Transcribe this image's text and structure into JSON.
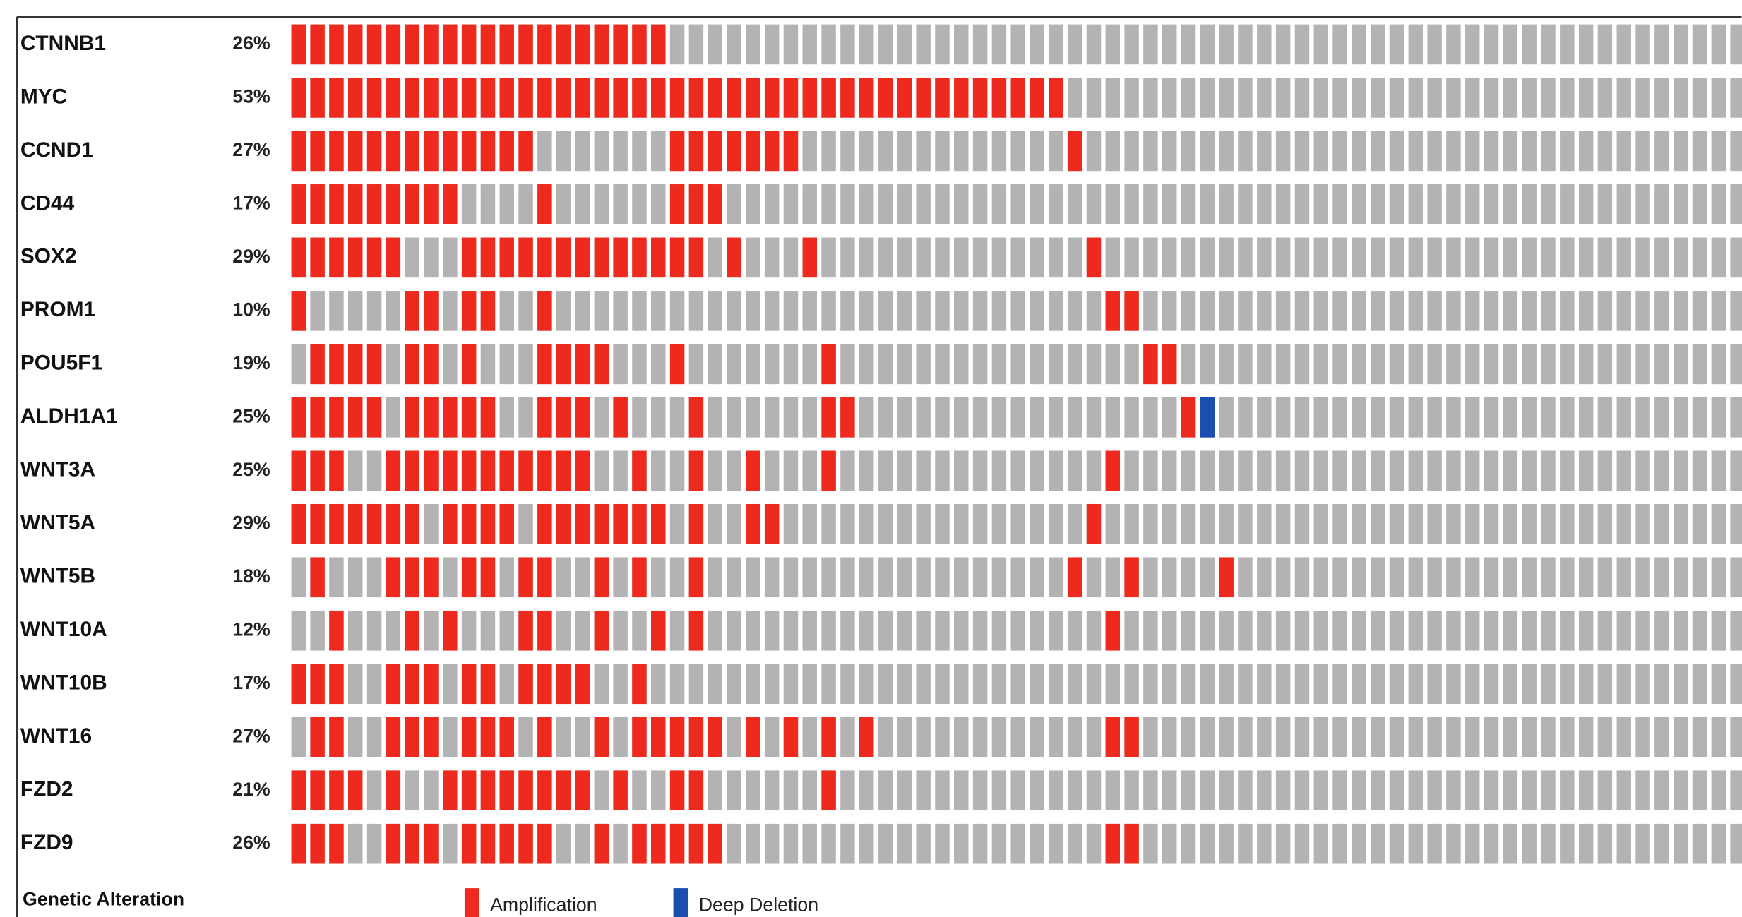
{
  "chart_data": {
    "type": "oncoprint",
    "legend_title": "Genetic Alteration",
    "legend": [
      {
        "name": "Amplification",
        "color": "#ee2a1f"
      },
      {
        "name": "Deep Deletion",
        "color": "#1b4eae"
      }
    ],
    "rows": [
      {
        "gene": "CTNNB1",
        "percent": "26%",
        "amplification": [
          0,
          1,
          2,
          3,
          4,
          5,
          6,
          7,
          8,
          9,
          10,
          11,
          12,
          13,
          14,
          15,
          16,
          17,
          18,
          19
        ],
        "deep_deletion": []
      },
      {
        "gene": "MYC",
        "percent": "53%",
        "amplification": [
          0,
          1,
          2,
          3,
          4,
          5,
          6,
          7,
          8,
          9,
          10,
          11,
          12,
          13,
          14,
          15,
          16,
          17,
          18,
          19,
          20,
          21,
          22,
          23,
          24,
          25,
          26,
          27,
          28,
          29,
          30,
          31,
          32,
          33,
          34,
          35,
          36,
          37,
          38,
          39,
          40
        ],
        "deep_deletion": []
      },
      {
        "gene": "CCND1",
        "percent": "27%",
        "amplification": [
          0,
          1,
          2,
          3,
          4,
          5,
          6,
          7,
          8,
          9,
          10,
          11,
          12,
          20,
          21,
          22,
          23,
          24,
          25,
          26,
          41
        ],
        "deep_deletion": []
      },
      {
        "gene": "CD44",
        "percent": "17%",
        "amplification": [
          0,
          1,
          2,
          3,
          4,
          5,
          6,
          7,
          8,
          13,
          20,
          21,
          22
        ],
        "deep_deletion": []
      },
      {
        "gene": "SOX2",
        "percent": "29%",
        "amplification": [
          0,
          1,
          2,
          3,
          4,
          5,
          9,
          10,
          11,
          12,
          13,
          14,
          15,
          16,
          17,
          18,
          19,
          20,
          21,
          23,
          27,
          42
        ],
        "deep_deletion": []
      },
      {
        "gene": "PROM1",
        "percent": "10%",
        "amplification": [
          0,
          6,
          7,
          9,
          10,
          13,
          43,
          44
        ],
        "deep_deletion": []
      },
      {
        "gene": "POU5F1",
        "percent": "19%",
        "amplification": [
          1,
          2,
          3,
          4,
          6,
          7,
          9,
          13,
          14,
          15,
          16,
          20,
          28,
          45,
          46
        ],
        "deep_deletion": []
      },
      {
        "gene": "ALDH1A1",
        "percent": "25%",
        "amplification": [
          0,
          1,
          2,
          3,
          4,
          6,
          7,
          8,
          9,
          10,
          13,
          14,
          15,
          17,
          21,
          28,
          29,
          47
        ],
        "deep_deletion": [
          48
        ]
      },
      {
        "gene": "WNT3A",
        "percent": "25%",
        "amplification": [
          0,
          1,
          2,
          5,
          6,
          7,
          8,
          9,
          10,
          11,
          12,
          13,
          14,
          15,
          18,
          21,
          24,
          28,
          43
        ],
        "deep_deletion": []
      },
      {
        "gene": "WNT5A",
        "percent": "29%",
        "amplification": [
          0,
          1,
          2,
          3,
          4,
          5,
          6,
          8,
          9,
          10,
          11,
          13,
          14,
          15,
          16,
          17,
          18,
          19,
          21,
          24,
          25,
          42
        ],
        "deep_deletion": []
      },
      {
        "gene": "WNT5B",
        "percent": "18%",
        "amplification": [
          1,
          5,
          6,
          7,
          9,
          10,
          12,
          13,
          16,
          18,
          21,
          41,
          44,
          49
        ],
        "deep_deletion": []
      },
      {
        "gene": "WNT10A",
        "percent": "12%",
        "amplification": [
          2,
          6,
          8,
          12,
          13,
          16,
          19,
          21,
          43
        ],
        "deep_deletion": []
      },
      {
        "gene": "WNT10B",
        "percent": "17%",
        "amplification": [
          0,
          1,
          2,
          5,
          6,
          7,
          9,
          10,
          12,
          13,
          14,
          15,
          18
        ],
        "deep_deletion": []
      },
      {
        "gene": "WNT16",
        "percent": "27%",
        "amplification": [
          1,
          2,
          5,
          6,
          7,
          9,
          10,
          11,
          13,
          16,
          18,
          19,
          20,
          21,
          22,
          24,
          26,
          28,
          30,
          43,
          44
        ],
        "deep_deletion": []
      },
      {
        "gene": "FZD2",
        "percent": "21%",
        "amplification": [
          0,
          1,
          2,
          3,
          5,
          8,
          9,
          10,
          11,
          12,
          13,
          14,
          15,
          17,
          20,
          21,
          28
        ],
        "deep_deletion": []
      },
      {
        "gene": "FZD9",
        "percent": "26%",
        "amplification": [
          0,
          1,
          2,
          5,
          6,
          7,
          9,
          10,
          11,
          12,
          13,
          16,
          18,
          19,
          20,
          21,
          22,
          43,
          44
        ],
        "deep_deletion": []
      }
    ]
  }
}
